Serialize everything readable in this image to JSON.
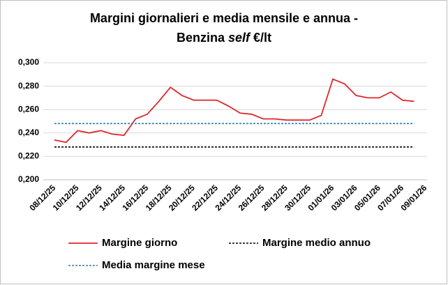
{
  "chart_data": {
    "type": "line",
    "title": [
      "Margini giornalieri e media mensile e annua -",
      "Benzina",
      "self",
      "€/lt"
    ],
    "categories": [
      "08/12/25",
      null,
      "10/12/25",
      null,
      "12/12/25",
      null,
      "14/12/25",
      null,
      "16/12/25",
      null,
      "18/12/25",
      null,
      "20/12/25",
      null,
      "22/12/25",
      null,
      "24/12/25",
      null,
      "26/12/25",
      null,
      "28/12/25",
      null,
      "30/12/25",
      null,
      "01/01/26",
      null,
      "03/01/26",
      null,
      "05/01/26",
      null,
      "07/01/26",
      null,
      "09/01/26"
    ],
    "series": [
      {
        "name": "Margine giorno",
        "color": "#e0262b",
        "dash": false,
        "values": [
          0.234,
          0.232,
          0.242,
          0.24,
          0.242,
          0.239,
          0.238,
          0.252,
          0.256,
          0.267,
          0.279,
          0.272,
          0.268,
          0.268,
          0.268,
          0.263,
          0.257,
          0.256,
          0.252,
          0.252,
          0.251,
          0.251,
          0.251,
          0.255,
          0.286,
          0.282,
          0.272,
          0.27,
          0.27,
          0.275,
          0.268,
          0.267,
          null
        ]
      },
      {
        "name": "Margine medio annuo",
        "color": "#000000",
        "dash": true,
        "values": [
          0.228,
          0.228,
          0.228,
          0.228,
          0.228,
          0.228,
          0.228,
          0.228,
          0.228,
          0.228,
          0.228,
          0.228,
          0.228,
          0.228,
          0.228,
          0.228,
          0.228,
          0.228,
          0.228,
          0.228,
          0.228,
          0.228,
          0.228,
          0.228,
          0.228,
          0.228,
          0.228,
          0.228,
          0.228,
          0.228,
          0.228,
          0.228,
          null
        ]
      },
      {
        "name": "Media margine mese",
        "color": "#2a7ab0",
        "dash": true,
        "values": [
          0.248,
          0.248,
          0.248,
          0.248,
          0.248,
          0.248,
          0.248,
          0.248,
          0.248,
          0.248,
          0.248,
          0.248,
          0.248,
          0.248,
          0.248,
          0.248,
          0.248,
          0.248,
          0.248,
          0.248,
          0.248,
          0.248,
          0.248,
          0.248,
          0.248,
          0.248,
          0.248,
          0.248,
          0.248,
          0.248,
          0.248,
          0.248,
          null
        ]
      }
    ],
    "ylim": [
      0.2,
      0.3
    ],
    "yticks": [
      {
        "value": 0.2,
        "label": "0,200"
      },
      {
        "value": 0.22,
        "label": "0,220"
      },
      {
        "value": 0.24,
        "label": "0,240"
      },
      {
        "value": 0.26,
        "label": "0,260"
      },
      {
        "value": 0.28,
        "label": "0,280"
      },
      {
        "value": 0.3,
        "label": "0,300"
      }
    ],
    "grid": true,
    "legend": "bottom"
  }
}
